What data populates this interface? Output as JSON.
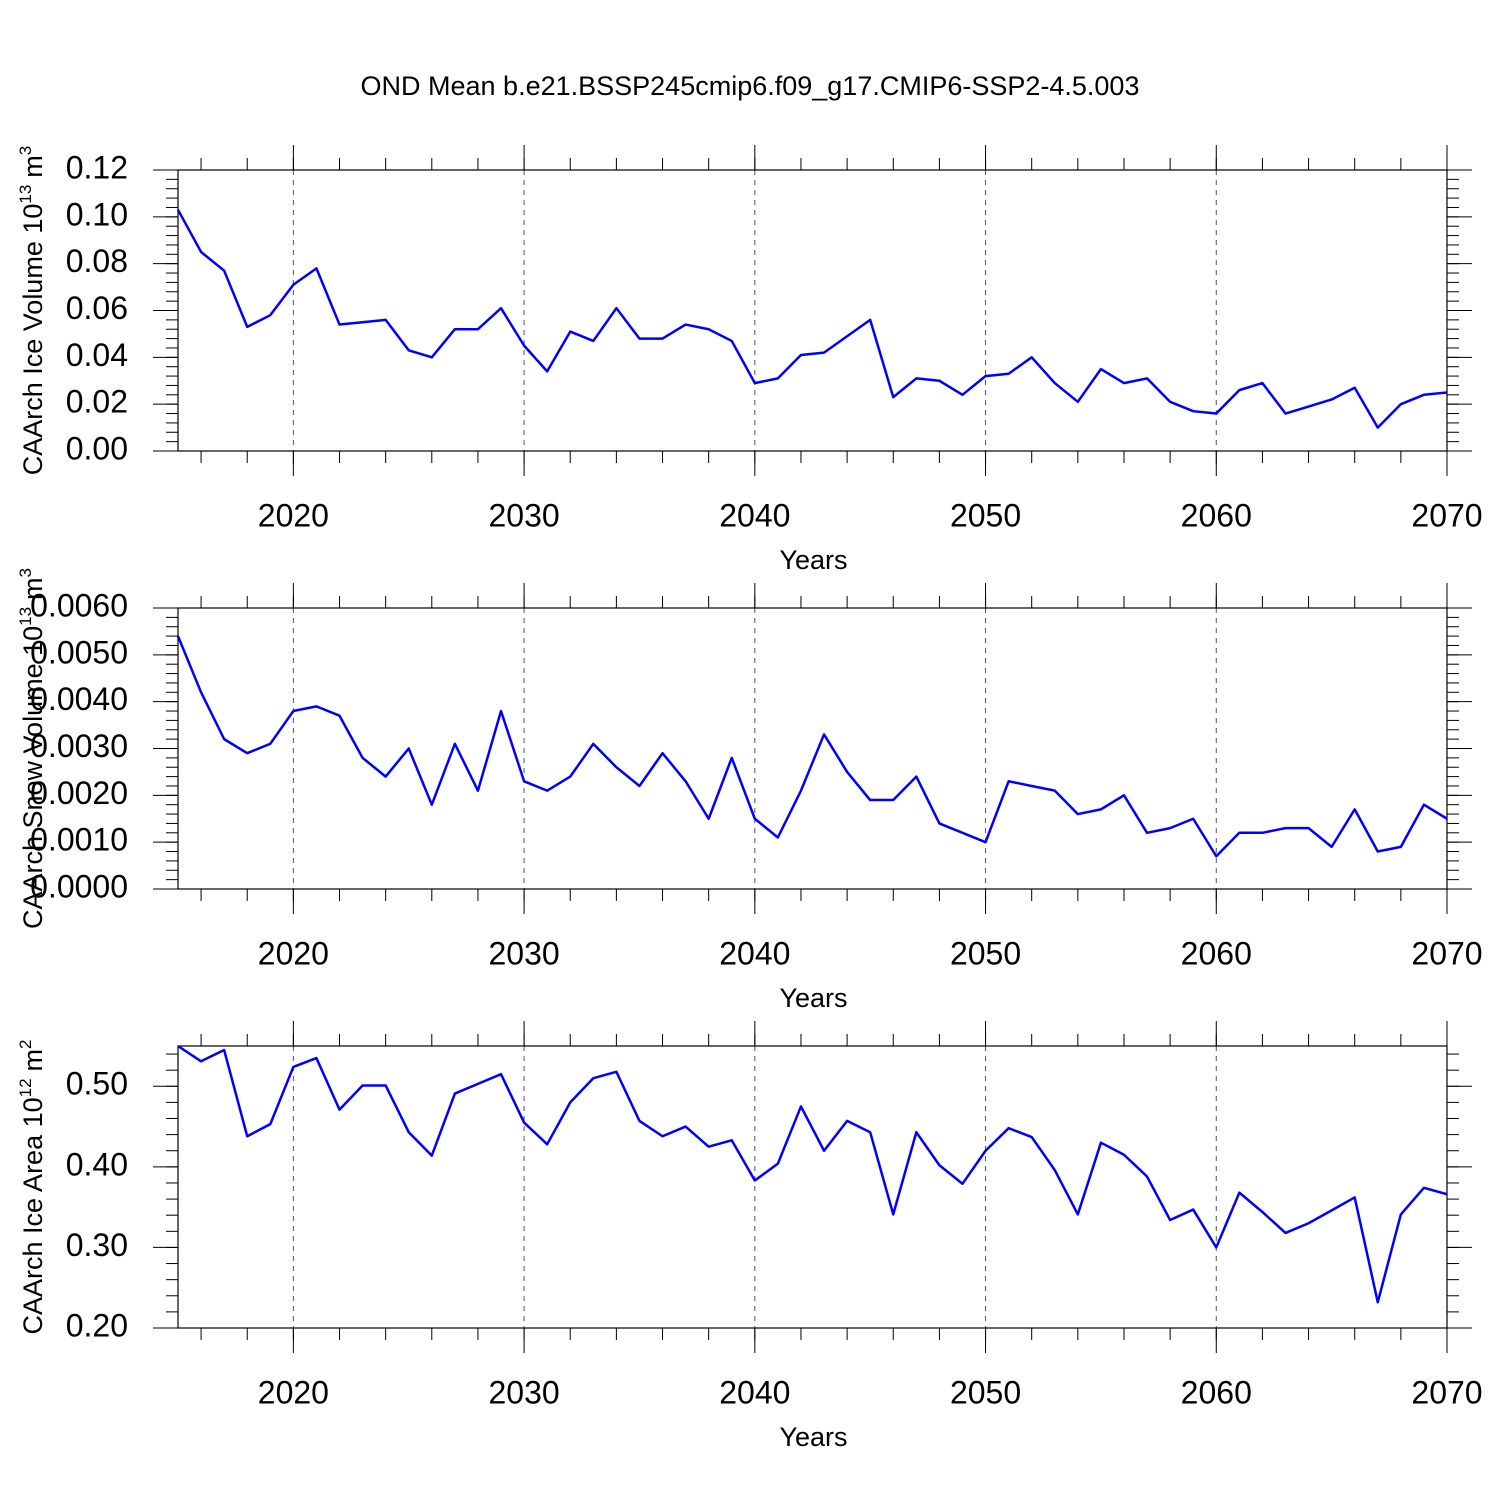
{
  "chart_data": [
    {
      "type": "line",
      "title": "OND Mean b.e21.BSSP245cmip6.f09_g17.CMIP6-SSP2-4.5.003",
      "ylabel": {
        "text": "CAArch Ice Volume 10",
        "exponent": "13",
        "unit": "m",
        "unit_exponent": "3"
      },
      "xlabel": "Years",
      "x": [
        2015,
        2016,
        2017,
        2018,
        2019,
        2020,
        2021,
        2022,
        2023,
        2024,
        2025,
        2026,
        2027,
        2028,
        2029,
        2030,
        2031,
        2032,
        2033,
        2034,
        2035,
        2036,
        2037,
        2038,
        2039,
        2040,
        2041,
        2042,
        2043,
        2044,
        2045,
        2046,
        2047,
        2048,
        2049,
        2050,
        2051,
        2052,
        2053,
        2054,
        2055,
        2056,
        2057,
        2058,
        2059,
        2060,
        2061,
        2062,
        2063,
        2064,
        2065,
        2066,
        2067,
        2068,
        2069,
        2070
      ],
      "series": [
        {
          "name": "CAArch Ice Volume",
          "color": "#0000ff",
          "values": [
            0.103,
            0.085,
            0.077,
            0.053,
            0.058,
            0.071,
            0.078,
            0.054,
            0.055,
            0.056,
            0.043,
            0.04,
            0.052,
            0.052,
            0.061,
            0.045,
            0.034,
            0.051,
            0.047,
            0.061,
            0.048,
            0.048,
            0.054,
            0.052,
            0.047,
            0.029,
            0.031,
            0.041,
            0.042,
            0.049,
            0.056,
            0.023,
            0.031,
            0.03,
            0.024,
            0.032,
            0.033,
            0.04,
            0.029,
            0.021,
            0.035,
            0.029,
            0.031,
            0.021,
            0.017,
            0.016,
            0.026,
            0.029,
            0.016,
            0.019,
            0.022,
            0.027,
            0.01,
            0.02,
            0.024,
            0.025
          ]
        }
      ],
      "xlim": [
        2015,
        2070
      ],
      "xticks": [
        2020,
        2030,
        2040,
        2050,
        2060,
        2070
      ],
      "ylim": [
        0,
        0.12
      ],
      "yticks": [
        {
          "value": 0,
          "label": "0.00"
        },
        0.02,
        0.04,
        0.06,
        0.08,
        {
          "value": 0.1,
          "label": "0.10"
        },
        0.12
      ],
      "grid": "x"
    },
    {
      "type": "line",
      "ylabel": {
        "text": "CAArch Snow Volume 10",
        "exponent": "13",
        "unit": "m",
        "unit_exponent": "3"
      },
      "xlabel": "Years",
      "x": [
        2015,
        2016,
        2017,
        2018,
        2019,
        2020,
        2021,
        2022,
        2023,
        2024,
        2025,
        2026,
        2027,
        2028,
        2029,
        2030,
        2031,
        2032,
        2033,
        2034,
        2035,
        2036,
        2037,
        2038,
        2039,
        2040,
        2041,
        2042,
        2043,
        2044,
        2045,
        2046,
        2047,
        2048,
        2049,
        2050,
        2051,
        2052,
        2053,
        2054,
        2055,
        2056,
        2057,
        2058,
        2059,
        2060,
        2061,
        2062,
        2063,
        2064,
        2065,
        2066,
        2067,
        2068,
        2069,
        2070
      ],
      "series": [
        {
          "name": "CAArch Snow Volume",
          "color": "#0000ff",
          "values": [
            0.0054,
            0.0042,
            0.0032,
            0.0029,
            0.0031,
            0.0038,
            0.0039,
            0.0037,
            0.0028,
            0.0024,
            0.003,
            0.0018,
            0.0031,
            0.0021,
            0.0038,
            0.0023,
            0.0021,
            0.0024,
            0.0031,
            0.0026,
            0.0022,
            0.0029,
            0.0023,
            0.0015,
            0.0028,
            0.0015,
            0.0011,
            0.0021,
            0.0033,
            0.0025,
            0.0019,
            0.0019,
            0.0024,
            0.0014,
            0.0012,
            0.001,
            0.0023,
            0.0022,
            0.0021,
            0.0016,
            0.0017,
            0.002,
            0.0012,
            0.0013,
            0.0015,
            0.0007,
            0.0012,
            0.0012,
            0.0013,
            0.0013,
            0.0009,
            0.0017,
            0.0008,
            0.0009,
            0.0018,
            0.0015
          ]
        }
      ],
      "xlim": [
        2015,
        2070
      ],
      "xticks": [
        2020,
        2030,
        2040,
        2050,
        2060,
        2070
      ],
      "ylim": [
        0,
        0.006
      ],
      "yticks": [
        {
          "value": 0,
          "label": "0.0000"
        },
        {
          "value": 0.001,
          "label": "0.0010"
        },
        {
          "value": 0.002,
          "label": "0.0020"
        },
        {
          "value": 0.003,
          "label": "0.0030"
        },
        {
          "value": 0.004,
          "label": "0.0040"
        },
        {
          "value": 0.005,
          "label": "0.0050"
        },
        {
          "value": 0.006,
          "label": "0.0060"
        }
      ],
      "grid": "x"
    },
    {
      "type": "line",
      "ylabel": {
        "text": "CAArch Ice Area 10",
        "exponent": "12",
        "unit": "m",
        "unit_exponent": "2"
      },
      "xlabel": "Years",
      "x": [
        2015,
        2016,
        2017,
        2018,
        2019,
        2020,
        2021,
        2022,
        2023,
        2024,
        2025,
        2026,
        2027,
        2028,
        2029,
        2030,
        2031,
        2032,
        2033,
        2034,
        2035,
        2036,
        2037,
        2038,
        2039,
        2040,
        2041,
        2042,
        2043,
        2044,
        2045,
        2046,
        2047,
        2048,
        2049,
        2050,
        2051,
        2052,
        2053,
        2054,
        2055,
        2056,
        2057,
        2058,
        2059,
        2060,
        2061,
        2062,
        2063,
        2064,
        2065,
        2066,
        2067,
        2068,
        2069,
        2070
      ],
      "series": [
        {
          "name": "CAArch Ice Area",
          "color": "#0000ff",
          "values": [
            0.55,
            0.531,
            0.545,
            0.438,
            0.453,
            0.524,
            0.535,
            0.471,
            0.501,
            0.501,
            0.443,
            0.414,
            0.491,
            0.503,
            0.515,
            0.455,
            0.428,
            0.48,
            0.51,
            0.518,
            0.457,
            0.438,
            0.45,
            0.425,
            0.433,
            0.383,
            0.404,
            0.475,
            0.42,
            0.457,
            0.443,
            0.341,
            0.443,
            0.402,
            0.379,
            0.42,
            0.448,
            0.437,
            0.396,
            0.341,
            0.43,
            0.415,
            0.388,
            0.334,
            0.347,
            0.3,
            0.368,
            0.344,
            0.318,
            0.33,
            0.346,
            0.362,
            0.232,
            0.341,
            0.374,
            0.366
          ]
        }
      ],
      "xlim": [
        2015,
        2070
      ],
      "xticks": [
        2020,
        2030,
        2040,
        2050,
        2060,
        2070
      ],
      "ylim": [
        0.2,
        0.55
      ],
      "yticks": [
        {
          "value": 0.2,
          "label": "0.20"
        },
        {
          "value": 0.3,
          "label": "0.30"
        },
        {
          "value": 0.4,
          "label": "0.40"
        },
        {
          "value": 0.5,
          "label": "0.50"
        }
      ],
      "grid": "x"
    }
  ]
}
